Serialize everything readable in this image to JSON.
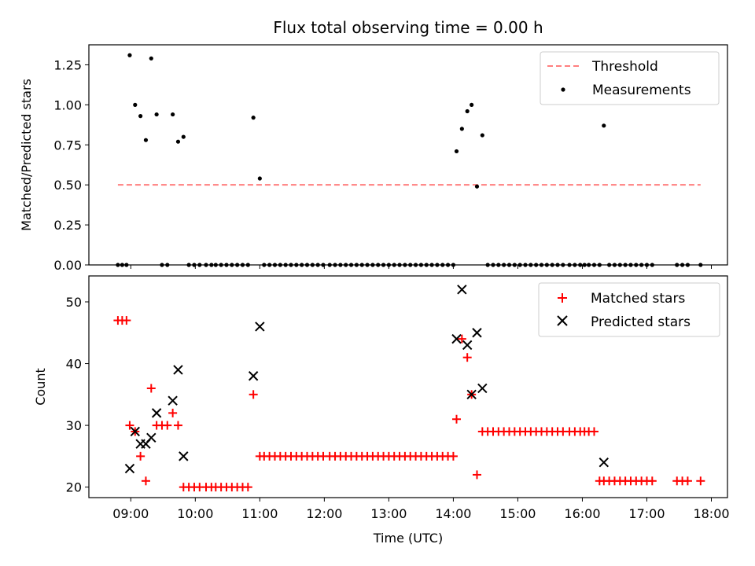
{
  "chart_data": [
    {
      "type": "scatter",
      "title": "Flux total observing time = 0.00 h",
      "xlabel": "",
      "ylabel": "Matched/Predicted stars",
      "xlim": [
        "08:21",
        "18:15"
      ],
      "ylim": [
        0,
        1.375
      ],
      "yticks": [
        0,
        0.25,
        0.5,
        0.75,
        1.0,
        1.25
      ],
      "ytick_labels": [
        "0.00",
        "0.25",
        "0.50",
        "0.75",
        "1.00",
        "1.25"
      ],
      "xtick_labels": [
        "09:00",
        "10:00",
        "11:00",
        "12:00",
        "13:00",
        "14:00",
        "15:00",
        "16:00",
        "17:00",
        "18:00"
      ],
      "legend_position": "top-right",
      "legend": [
        "Threshold",
        "Measurements"
      ],
      "threshold": {
        "name": "Threshold",
        "y": 0.5,
        "x_start": "08:48",
        "x_end": "17:50",
        "color": "#ff7f7f",
        "style": "dashed"
      },
      "series": [
        {
          "name": "Measurements",
          "color": "#000000",
          "marker": "dot",
          "points": [
            [
              "08:48",
              0
            ],
            [
              "08:52",
              0
            ],
            [
              "08:56",
              0
            ],
            [
              "08:59",
              1.31
            ],
            [
              "09:04",
              1.0
            ],
            [
              "09:09",
              0.93
            ],
            [
              "09:14",
              0.78
            ],
            [
              "09:19",
              1.29
            ],
            [
              "09:24",
              0.94
            ],
            [
              "09:29",
              0
            ],
            [
              "09:34",
              0
            ],
            [
              "09:39",
              0.94
            ],
            [
              "09:44",
              0.77
            ],
            [
              "09:49",
              0.8
            ],
            [
              "09:54",
              0
            ],
            [
              "09:59",
              0
            ],
            [
              "10:04",
              0
            ],
            [
              "10:10",
              0
            ],
            [
              "10:15",
              0
            ],
            [
              "10:19",
              0
            ],
            [
              "10:24",
              0
            ],
            [
              "10:29",
              0
            ],
            [
              "10:34",
              0
            ],
            [
              "10:39",
              0
            ],
            [
              "10:44",
              0
            ],
            [
              "10:49",
              0
            ],
            [
              "10:54",
              0.92
            ],
            [
              "11:00",
              0.54
            ],
            [
              "11:04",
              0
            ],
            [
              "11:09",
              0
            ],
            [
              "11:14",
              0
            ],
            [
              "11:19",
              0
            ],
            [
              "11:24",
              0
            ],
            [
              "11:29",
              0
            ],
            [
              "11:34",
              0
            ],
            [
              "11:39",
              0
            ],
            [
              "11:44",
              0
            ],
            [
              "11:49",
              0
            ],
            [
              "11:54",
              0
            ],
            [
              "11:59",
              0
            ],
            [
              "12:05",
              0
            ],
            [
              "12:10",
              0
            ],
            [
              "12:15",
              0
            ],
            [
              "12:20",
              0
            ],
            [
              "12:25",
              0
            ],
            [
              "12:30",
              0
            ],
            [
              "12:35",
              0
            ],
            [
              "12:40",
              0
            ],
            [
              "12:45",
              0
            ],
            [
              "12:50",
              0
            ],
            [
              "12:55",
              0
            ],
            [
              "13:00",
              0
            ],
            [
              "13:05",
              0
            ],
            [
              "13:10",
              0
            ],
            [
              "13:15",
              0
            ],
            [
              "13:20",
              0
            ],
            [
              "13:25",
              0
            ],
            [
              "13:30",
              0
            ],
            [
              "13:35",
              0
            ],
            [
              "13:40",
              0
            ],
            [
              "13:45",
              0
            ],
            [
              "13:50",
              0
            ],
            [
              "13:55",
              0
            ],
            [
              "14:00",
              0
            ],
            [
              "14:03",
              0.71
            ],
            [
              "14:08",
              0.85
            ],
            [
              "14:13",
              0.96
            ],
            [
              "14:17",
              1.0
            ],
            [
              "14:22",
              0.49
            ],
            [
              "14:27",
              0.81
            ],
            [
              "14:32",
              0
            ],
            [
              "14:37",
              0
            ],
            [
              "14:42",
              0
            ],
            [
              "14:47",
              0
            ],
            [
              "14:52",
              0
            ],
            [
              "14:57",
              0
            ],
            [
              "15:02",
              0
            ],
            [
              "15:07",
              0
            ],
            [
              "15:12",
              0
            ],
            [
              "15:17",
              0
            ],
            [
              "15:22",
              0
            ],
            [
              "15:27",
              0
            ],
            [
              "15:32",
              0
            ],
            [
              "15:37",
              0
            ],
            [
              "15:42",
              0
            ],
            [
              "15:48",
              0
            ],
            [
              "15:53",
              0
            ],
            [
              "15:58",
              0
            ],
            [
              "16:02",
              0
            ],
            [
              "16:06",
              0
            ],
            [
              "16:11",
              0
            ],
            [
              "16:16",
              0
            ],
            [
              "16:20",
              0.87
            ],
            [
              "16:25",
              0
            ],
            [
              "16:30",
              0
            ],
            [
              "16:35",
              0
            ],
            [
              "16:40",
              0
            ],
            [
              "16:45",
              0
            ],
            [
              "16:50",
              0
            ],
            [
              "16:55",
              0
            ],
            [
              "17:00",
              0
            ],
            [
              "17:05",
              0
            ],
            [
              "17:28",
              0
            ],
            [
              "17:33",
              0
            ],
            [
              "17:38",
              0
            ],
            [
              "17:50",
              0
            ]
          ]
        }
      ]
    },
    {
      "type": "scatter",
      "title": "",
      "xlabel": "Time (UTC)",
      "ylabel": "Count",
      "xlim": [
        "08:21",
        "18:15"
      ],
      "ylim": [
        18.3,
        54.2
      ],
      "yticks": [
        20,
        30,
        40,
        50
      ],
      "ytick_labels": [
        "20",
        "30",
        "40",
        "50"
      ],
      "xtick_labels": [
        "09:00",
        "10:00",
        "11:00",
        "12:00",
        "13:00",
        "14:00",
        "15:00",
        "16:00",
        "17:00",
        "18:00"
      ],
      "legend_position": "top-right",
      "legend": [
        "Matched stars",
        "Predicted stars"
      ],
      "series": [
        {
          "name": "Matched stars",
          "color": "#ff0000",
          "marker": "plus",
          "points": [
            [
              "08:48",
              47
            ],
            [
              "08:52",
              47
            ],
            [
              "08:56",
              47
            ],
            [
              "08:59",
              30
            ],
            [
              "09:04",
              29
            ],
            [
              "09:09",
              25
            ],
            [
              "09:14",
              21
            ],
            [
              "09:19",
              36
            ],
            [
              "09:24",
              30
            ],
            [
              "09:29",
              30
            ],
            [
              "09:34",
              30
            ],
            [
              "09:39",
              32
            ],
            [
              "09:44",
              30
            ],
            [
              "09:49",
              20
            ],
            [
              "09:54",
              20
            ],
            [
              "09:59",
              20
            ],
            [
              "10:04",
              20
            ],
            [
              "10:10",
              20
            ],
            [
              "10:15",
              20
            ],
            [
              "10:19",
              20
            ],
            [
              "10:24",
              20
            ],
            [
              "10:29",
              20
            ],
            [
              "10:34",
              20
            ],
            [
              "10:39",
              20
            ],
            [
              "10:44",
              20
            ],
            [
              "10:49",
              20
            ],
            [
              "10:54",
              35
            ],
            [
              "11:00",
              25
            ],
            [
              "11:04",
              25
            ],
            [
              "11:09",
              25
            ],
            [
              "11:14",
              25
            ],
            [
              "11:19",
              25
            ],
            [
              "11:24",
              25
            ],
            [
              "11:29",
              25
            ],
            [
              "11:34",
              25
            ],
            [
              "11:39",
              25
            ],
            [
              "11:44",
              25
            ],
            [
              "11:49",
              25
            ],
            [
              "11:54",
              25
            ],
            [
              "11:59",
              25
            ],
            [
              "12:05",
              25
            ],
            [
              "12:10",
              25
            ],
            [
              "12:15",
              25
            ],
            [
              "12:20",
              25
            ],
            [
              "12:25",
              25
            ],
            [
              "12:30",
              25
            ],
            [
              "12:35",
              25
            ],
            [
              "12:40",
              25
            ],
            [
              "12:45",
              25
            ],
            [
              "12:50",
              25
            ],
            [
              "12:55",
              25
            ],
            [
              "13:00",
              25
            ],
            [
              "13:05",
              25
            ],
            [
              "13:10",
              25
            ],
            [
              "13:15",
              25
            ],
            [
              "13:20",
              25
            ],
            [
              "13:25",
              25
            ],
            [
              "13:30",
              25
            ],
            [
              "13:35",
              25
            ],
            [
              "13:40",
              25
            ],
            [
              "13:45",
              25
            ],
            [
              "13:50",
              25
            ],
            [
              "13:55",
              25
            ],
            [
              "14:00",
              25
            ],
            [
              "14:03",
              31
            ],
            [
              "14:08",
              44
            ],
            [
              "14:13",
              41
            ],
            [
              "14:17",
              35
            ],
            [
              "14:22",
              22
            ],
            [
              "14:27",
              29
            ],
            [
              "14:32",
              29
            ],
            [
              "14:37",
              29
            ],
            [
              "14:42",
              29
            ],
            [
              "14:47",
              29
            ],
            [
              "14:52",
              29
            ],
            [
              "14:57",
              29
            ],
            [
              "15:02",
              29
            ],
            [
              "15:07",
              29
            ],
            [
              "15:12",
              29
            ],
            [
              "15:17",
              29
            ],
            [
              "15:22",
              29
            ],
            [
              "15:27",
              29
            ],
            [
              "15:32",
              29
            ],
            [
              "15:37",
              29
            ],
            [
              "15:42",
              29
            ],
            [
              "15:48",
              29
            ],
            [
              "15:53",
              29
            ],
            [
              "15:58",
              29
            ],
            [
              "16:02",
              29
            ],
            [
              "16:06",
              29
            ],
            [
              "16:11",
              29
            ],
            [
              "16:16",
              21
            ],
            [
              "16:20",
              21
            ],
            [
              "16:25",
              21
            ],
            [
              "16:30",
              21
            ],
            [
              "16:35",
              21
            ],
            [
              "16:40",
              21
            ],
            [
              "16:45",
              21
            ],
            [
              "16:50",
              21
            ],
            [
              "16:55",
              21
            ],
            [
              "17:00",
              21
            ],
            [
              "17:05",
              21
            ],
            [
              "17:28",
              21
            ],
            [
              "17:33",
              21
            ],
            [
              "17:38",
              21
            ],
            [
              "17:50",
              21
            ]
          ]
        },
        {
          "name": "Predicted stars",
          "color": "#000000",
          "marker": "x",
          "points": [
            [
              "08:59",
              23
            ],
            [
              "09:04",
              29
            ],
            [
              "09:09",
              27
            ],
            [
              "09:14",
              27
            ],
            [
              "09:19",
              28
            ],
            [
              "09:24",
              32
            ],
            [
              "09:39",
              34
            ],
            [
              "09:44",
              39
            ],
            [
              "09:49",
              25
            ],
            [
              "10:54",
              38
            ],
            [
              "11:00",
              46
            ],
            [
              "14:03",
              44
            ],
            [
              "14:08",
              52
            ],
            [
              "14:13",
              43
            ],
            [
              "14:17",
              35
            ],
            [
              "14:22",
              45
            ],
            [
              "14:27",
              36
            ],
            [
              "16:20",
              24
            ]
          ]
        }
      ]
    }
  ]
}
